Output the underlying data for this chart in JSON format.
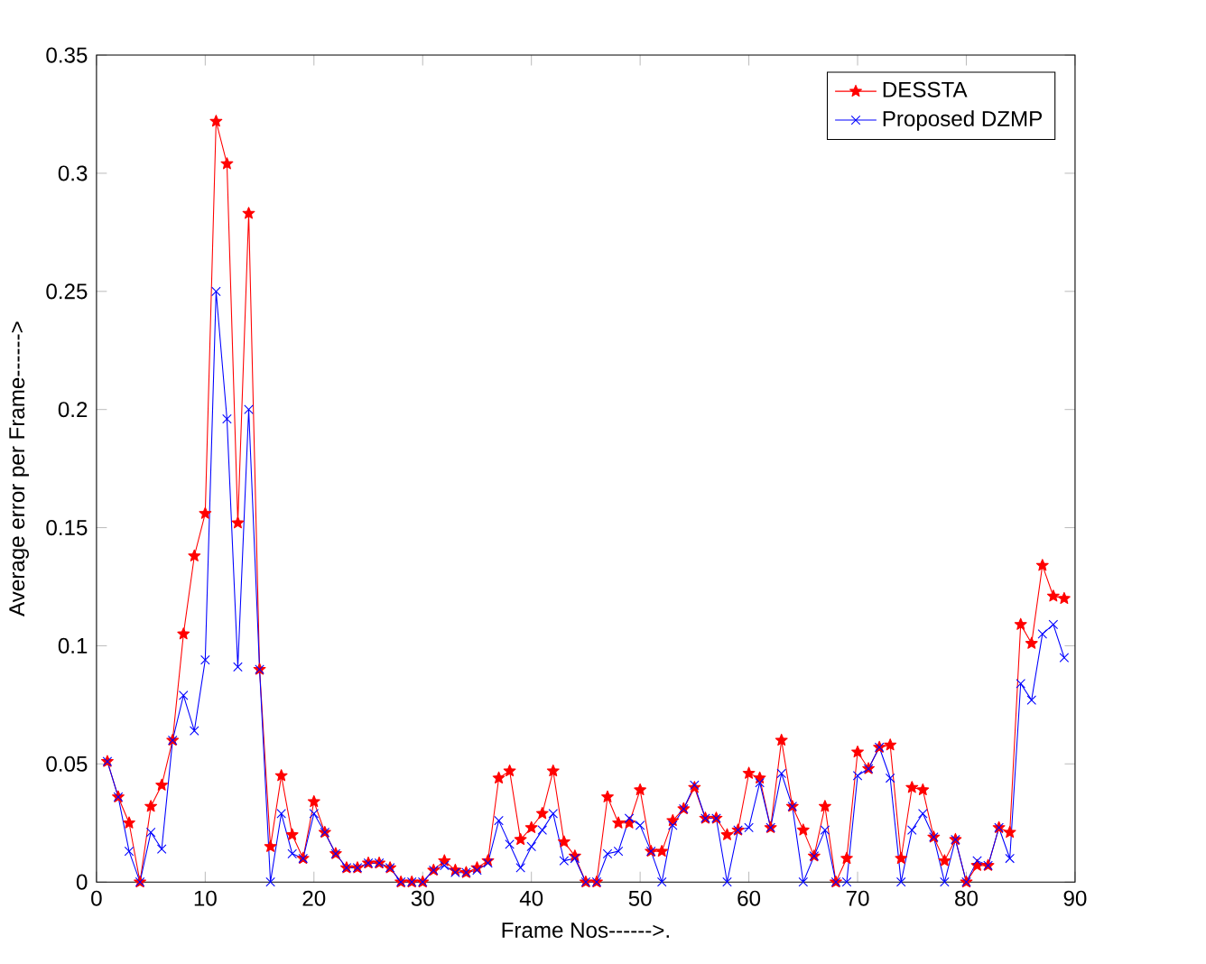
{
  "chart_data": {
    "type": "line",
    "xlabel": "Frame Nos------>.",
    "ylabel": "Average error per Frame------>",
    "x": [
      1,
      2,
      3,
      4,
      5,
      6,
      7,
      8,
      9,
      10,
      11,
      12,
      13,
      14,
      15,
      16,
      17,
      18,
      19,
      20,
      21,
      22,
      23,
      24,
      25,
      26,
      27,
      28,
      29,
      30,
      31,
      32,
      33,
      34,
      35,
      36,
      37,
      38,
      39,
      40,
      41,
      42,
      43,
      44,
      45,
      46,
      47,
      48,
      49,
      50,
      51,
      52,
      53,
      54,
      55,
      56,
      57,
      58,
      59,
      60,
      61,
      62,
      63,
      64,
      65,
      66,
      67,
      68,
      69,
      70,
      71,
      72,
      73,
      74,
      75,
      76,
      77,
      78,
      79,
      80,
      81,
      82,
      83,
      84,
      85,
      86,
      87,
      88,
      89
    ],
    "series": [
      {
        "name": "DESSTA",
        "color": "#ff0000",
        "marker": "star",
        "values": [
          0.051,
          0.036,
          0.025,
          0,
          0.032,
          0.041,
          0.06,
          0.105,
          0.138,
          0.156,
          0.322,
          0.304,
          0.152,
          0.283,
          0.09,
          0.015,
          0.045,
          0.02,
          0.01,
          0.034,
          0.021,
          0.012,
          0.006,
          0.006,
          0.008,
          0.008,
          0.006,
          0,
          0,
          0,
          0.005,
          0.009,
          0.005,
          0.004,
          0.006,
          0.009,
          0.044,
          0.047,
          0.018,
          0.023,
          0.029,
          0.047,
          0.017,
          0.011,
          0,
          0,
          0.036,
          0.025,
          0.025,
          0.039,
          0.013,
          0.013,
          0.026,
          0.031,
          0.04,
          0.027,
          0.027,
          0.02,
          0.022,
          0.046,
          0.044,
          0.023,
          0.06,
          0.032,
          0.022,
          0.011,
          0.032,
          0,
          0.01,
          0.055,
          0.048,
          0.057,
          0.058,
          0.01,
          0.04,
          0.039,
          0.019,
          0.009,
          0.018,
          0,
          0.007,
          0.007,
          0.023,
          0.021,
          0.109,
          0.101,
          0.134,
          0.121,
          0.12
        ]
      },
      {
        "name": "Proposed DZMP",
        "color": "#0000ff",
        "marker": "cross",
        "values": [
          0.051,
          0.036,
          0.013,
          0,
          0.021,
          0.014,
          0.06,
          0.079,
          0.064,
          0.094,
          0.25,
          0.196,
          0.091,
          0.2,
          0.09,
          0,
          0.029,
          0.012,
          0.01,
          0.029,
          0.021,
          0.012,
          0.006,
          0.006,
          0.008,
          0.008,
          0.006,
          0,
          0,
          0,
          0.005,
          0.007,
          0.004,
          0.004,
          0.005,
          0.008,
          0.026,
          0.016,
          0.006,
          0.015,
          0.022,
          0.029,
          0.009,
          0.01,
          0,
          0,
          0.012,
          0.013,
          0.027,
          0.024,
          0.013,
          0,
          0.024,
          0.031,
          0.041,
          0.027,
          0.027,
          0,
          0.022,
          0.023,
          0.042,
          0.023,
          0.046,
          0.032,
          0,
          0.011,
          0.022,
          0,
          0,
          0.045,
          0.048,
          0.057,
          0.044,
          0,
          0.022,
          0.029,
          0.019,
          0,
          0.018,
          0,
          0.009,
          0.007,
          0.023,
          0.01,
          0.084,
          0.077,
          0.105,
          0.109,
          0.095
        ]
      }
    ],
    "xlim": [
      0,
      90
    ],
    "xticks": [
      0,
      10,
      20,
      30,
      40,
      50,
      60,
      70,
      80,
      90
    ],
    "ylim": [
      0,
      0.35
    ],
    "yticks": [
      0,
      0.05,
      0.1,
      0.15,
      0.2,
      0.25,
      0.3,
      0.35
    ],
    "grid": false,
    "legend": "top right",
    "line_style": "solid"
  }
}
